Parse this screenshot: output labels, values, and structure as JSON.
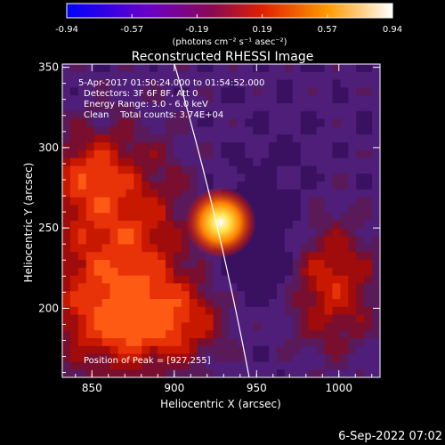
{
  "colorbar": {
    "ticks": [
      "-0.94",
      "-0.57",
      "-0.19",
      "0.19",
      "0.57",
      "0.94"
    ],
    "unit_label": "(photons cm⁻² s⁻¹ asec⁻²)",
    "min": -0.94,
    "max": 0.94
  },
  "image": {
    "title": "Reconstructed RHESSI Image",
    "xlabel": "Heliocentric X (arcsec)",
    "ylabel": "Heliocentric Y (arcsec)",
    "x_ticks": [
      "850",
      "900",
      "950",
      "1000"
    ],
    "y_ticks": [
      "350",
      "300",
      "250",
      "200"
    ],
    "xlim": [
      832,
      1025
    ],
    "ylim": [
      157,
      352
    ],
    "info": {
      "time_range": "5-Apr-2017 01:50:24.000 to 01:54:52.000",
      "detectors": "Detectors: 3F 6F 8F, Att 0",
      "energy": "Energy Range: 3.0 - 6.0 keV",
      "method": "Clean    Total counts: 3.74E+04"
    },
    "peak_label": "Position of Peak = [927,255]",
    "peak": [
      927,
      255
    ]
  },
  "footer": {
    "date": "6-Sep-2022 07:02"
  }
}
